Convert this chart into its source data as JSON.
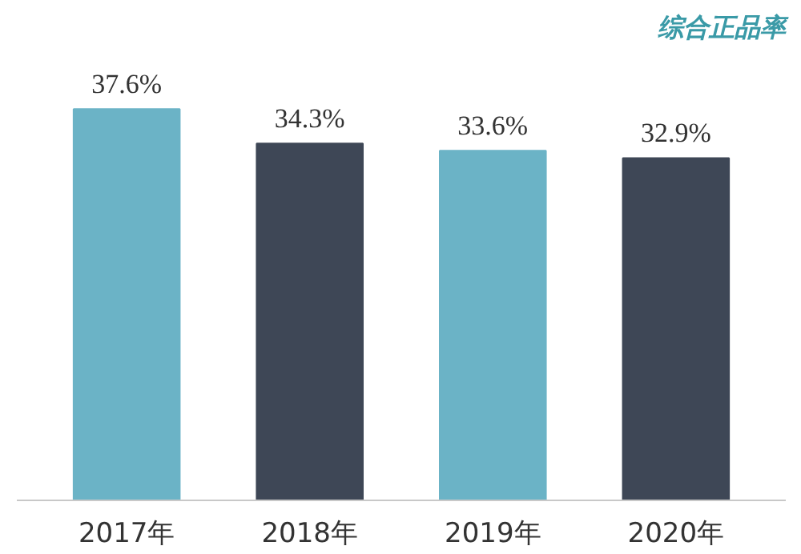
{
  "chart_data": {
    "type": "bar",
    "title": "综合正品率",
    "categories": [
      "2017年",
      "2018年",
      "2019年",
      "2020年"
    ],
    "values": [
      37.6,
      34.3,
      33.6,
      32.9
    ],
    "colors": [
      "#6bb3c6",
      "#3e4756",
      "#6bb3c6",
      "#3e4756"
    ],
    "value_labels": [
      "37.6%",
      "34.3%",
      "33.6%",
      "32.9%"
    ],
    "grid": false
  }
}
